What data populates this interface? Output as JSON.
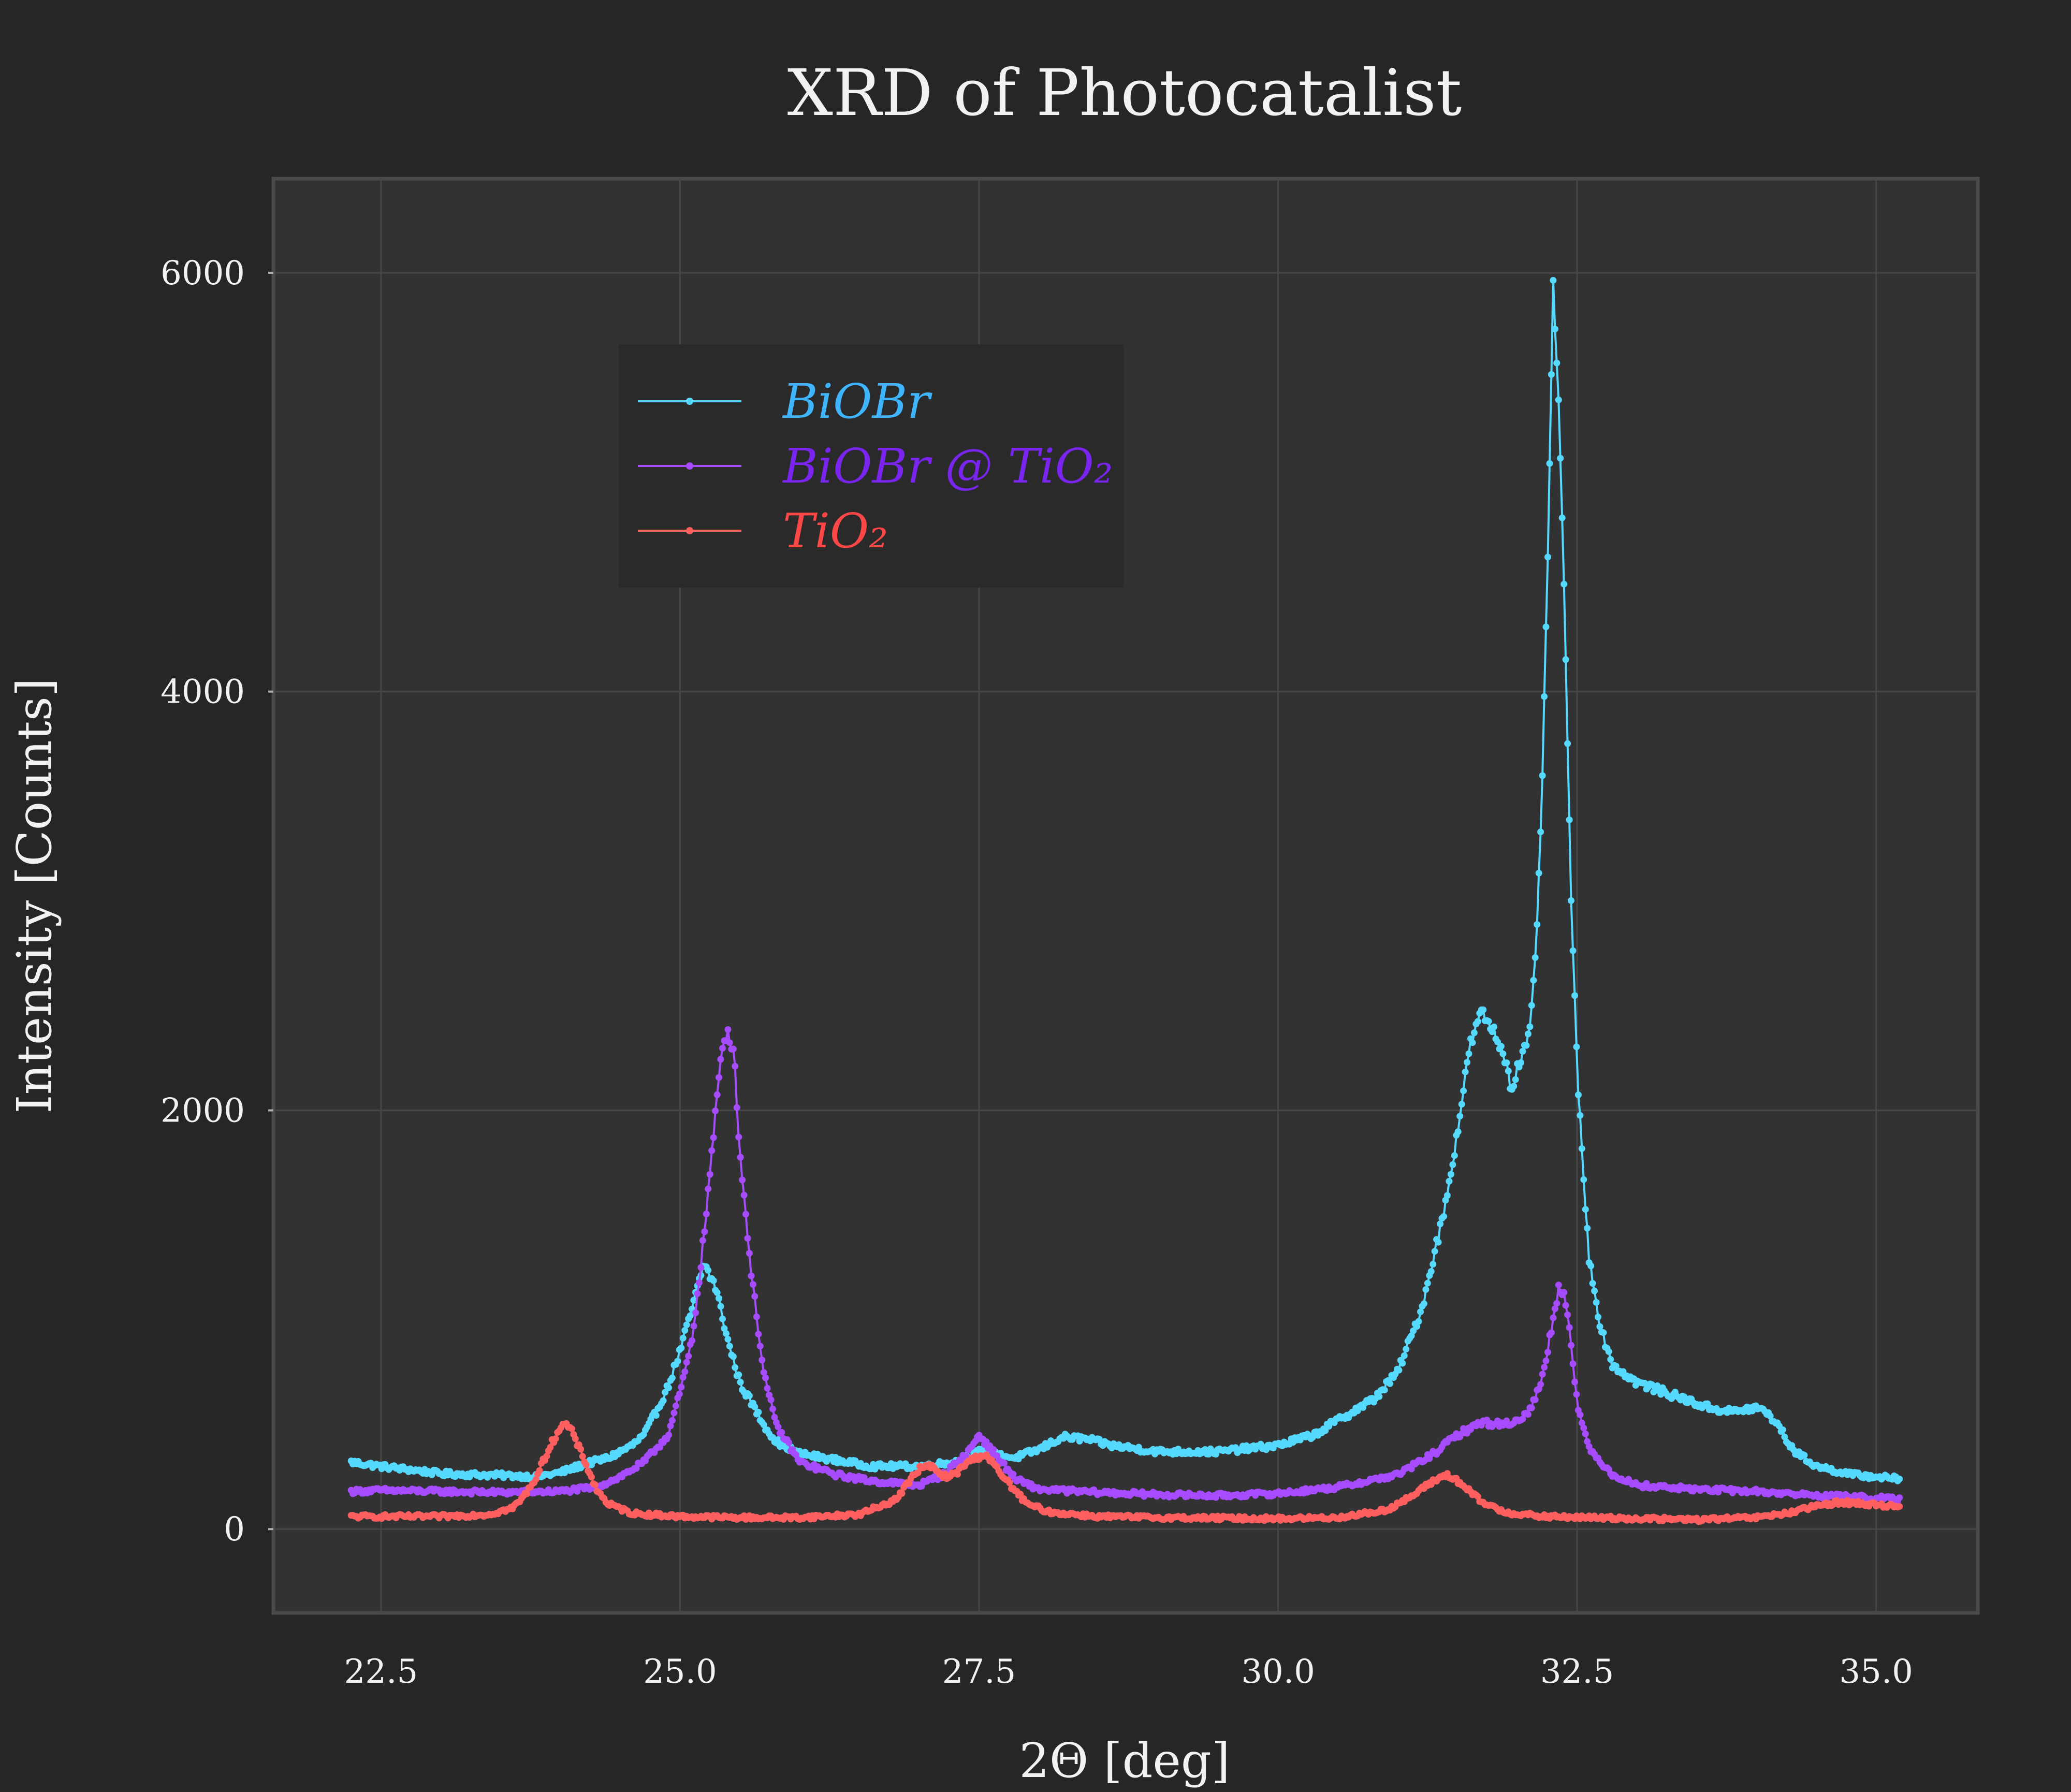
{
  "chart_data": {
    "type": "line",
    "title": "XRD of Photocatalist",
    "xlabel": "2Θ [deg]",
    "ylabel": "Intensity [Counts]",
    "xlim": [
      21.6,
      35.85
    ],
    "ylim": [
      -400,
      6450
    ],
    "xticks": [
      22.5,
      25.0,
      27.5,
      30.0,
      32.5,
      35.0
    ],
    "xtick_labels": [
      "22.5",
      "25.0",
      "27.5",
      "30.0",
      "32.5",
      "35.0"
    ],
    "yticks": [
      0,
      2000,
      4000,
      6000
    ],
    "ytick_labels": [
      "0",
      "2000",
      "4000",
      "6000"
    ],
    "grid": true,
    "legend": "upper-left",
    "background_color": "#262626",
    "plot_area_color": "#323232",
    "grid_color": "#4a4a4a",
    "series": [
      {
        "name": "BiOBr",
        "color": "#55d9ff",
        "label_color": "#3fb4ff",
        "points": [
          [
            22.25,
            320
          ],
          [
            22.5,
            300
          ],
          [
            22.8,
            280
          ],
          [
            23.0,
            265
          ],
          [
            23.3,
            260
          ],
          [
            23.6,
            255
          ],
          [
            23.8,
            250
          ],
          [
            24.0,
            270
          ],
          [
            24.2,
            310
          ],
          [
            24.4,
            340
          ],
          [
            24.6,
            400
          ],
          [
            24.7,
            450
          ],
          [
            24.8,
            560
          ],
          [
            24.9,
            680
          ],
          [
            25.0,
            850
          ],
          [
            25.1,
            1050
          ],
          [
            25.2,
            1270
          ],
          [
            25.3,
            1150
          ],
          [
            25.4,
            900
          ],
          [
            25.5,
            700
          ],
          [
            25.6,
            600
          ],
          [
            25.7,
            500
          ],
          [
            25.8,
            420
          ],
          [
            26.0,
            360
          ],
          [
            26.3,
            330
          ],
          [
            26.6,
            300
          ],
          [
            27.0,
            300
          ],
          [
            27.3,
            320
          ],
          [
            27.5,
            370
          ],
          [
            27.8,
            340
          ],
          [
            28.0,
            380
          ],
          [
            28.2,
            440
          ],
          [
            28.4,
            430
          ],
          [
            28.6,
            400
          ],
          [
            29.0,
            370
          ],
          [
            29.5,
            370
          ],
          [
            30.0,
            400
          ],
          [
            30.3,
            450
          ],
          [
            30.5,
            520
          ],
          [
            30.8,
            620
          ],
          [
            31.0,
            750
          ],
          [
            31.1,
            900
          ],
          [
            31.2,
            1050
          ],
          [
            31.3,
            1300
          ],
          [
            31.4,
            1550
          ],
          [
            31.5,
            1900
          ],
          [
            31.6,
            2300
          ],
          [
            31.7,
            2470
          ],
          [
            31.8,
            2380
          ],
          [
            31.9,
            2250
          ],
          [
            31.95,
            2100
          ],
          [
            32.0,
            2200
          ],
          [
            32.1,
            2350
          ],
          [
            32.15,
            2700
          ],
          [
            32.2,
            3400
          ],
          [
            32.25,
            4500
          ],
          [
            32.3,
            5950
          ],
          [
            32.35,
            5300
          ],
          [
            32.4,
            4300
          ],
          [
            32.45,
            3000
          ],
          [
            32.5,
            2200
          ],
          [
            32.55,
            1700
          ],
          [
            32.6,
            1300
          ],
          [
            32.7,
            950
          ],
          [
            32.8,
            780
          ],
          [
            33.0,
            700
          ],
          [
            33.3,
            640
          ],
          [
            33.6,
            580
          ],
          [
            33.8,
            560
          ],
          [
            34.0,
            580
          ],
          [
            34.1,
            550
          ],
          [
            34.2,
            480
          ],
          [
            34.3,
            380
          ],
          [
            34.5,
            300
          ],
          [
            34.8,
            260
          ],
          [
            35.0,
            250
          ],
          [
            35.2,
            240
          ]
        ]
      },
      {
        "name": "BiOBr @ TiO₂",
        "color": "#a74bff",
        "label_color": "#7a24f0",
        "points": [
          [
            22.25,
            180
          ],
          [
            22.5,
            185
          ],
          [
            23.0,
            180
          ],
          [
            23.5,
            175
          ],
          [
            24.0,
            180
          ],
          [
            24.3,
            200
          ],
          [
            24.5,
            250
          ],
          [
            24.7,
            320
          ],
          [
            24.9,
            450
          ],
          [
            25.0,
            650
          ],
          [
            25.1,
            900
          ],
          [
            25.2,
            1400
          ],
          [
            25.3,
            2000
          ],
          [
            25.35,
            2300
          ],
          [
            25.4,
            2380
          ],
          [
            25.45,
            2280
          ],
          [
            25.5,
            1800
          ],
          [
            25.6,
            1200
          ],
          [
            25.7,
            750
          ],
          [
            25.8,
            500
          ],
          [
            26.0,
            320
          ],
          [
            26.3,
            260
          ],
          [
            26.6,
            230
          ],
          [
            27.0,
            210
          ],
          [
            27.2,
            260
          ],
          [
            27.4,
            360
          ],
          [
            27.5,
            450
          ],
          [
            27.6,
            380
          ],
          [
            27.8,
            240
          ],
          [
            28.0,
            190
          ],
          [
            28.5,
            175
          ],
          [
            29.0,
            165
          ],
          [
            29.5,
            160
          ],
          [
            30.0,
            170
          ],
          [
            30.5,
            200
          ],
          [
            31.0,
            260
          ],
          [
            31.3,
            360
          ],
          [
            31.5,
            450
          ],
          [
            31.7,
            510
          ],
          [
            31.9,
            500
          ],
          [
            32.0,
            520
          ],
          [
            32.1,
            560
          ],
          [
            32.2,
            700
          ],
          [
            32.3,
            1000
          ],
          [
            32.35,
            1170
          ],
          [
            32.4,
            1100
          ],
          [
            32.45,
            900
          ],
          [
            32.5,
            600
          ],
          [
            32.6,
            380
          ],
          [
            32.8,
            260
          ],
          [
            33.0,
            210
          ],
          [
            33.5,
            190
          ],
          [
            34.0,
            180
          ],
          [
            34.5,
            160
          ],
          [
            35.0,
            150
          ],
          [
            35.2,
            140
          ]
        ]
      },
      {
        "name": "TiO₂",
        "color": "#ff5f5f",
        "label_color": "#ff4747",
        "points": [
          [
            22.25,
            60
          ],
          [
            22.5,
            60
          ],
          [
            23.0,
            60
          ],
          [
            23.4,
            70
          ],
          [
            23.6,
            100
          ],
          [
            23.7,
            160
          ],
          [
            23.8,
            250
          ],
          [
            23.9,
            380
          ],
          [
            24.0,
            490
          ],
          [
            24.05,
            500
          ],
          [
            24.1,
            460
          ],
          [
            24.2,
            330
          ],
          [
            24.3,
            190
          ],
          [
            24.4,
            120
          ],
          [
            24.6,
            75
          ],
          [
            25.0,
            60
          ],
          [
            25.5,
            55
          ],
          [
            26.0,
            55
          ],
          [
            26.5,
            70
          ],
          [
            26.8,
            140
          ],
          [
            27.0,
            290
          ],
          [
            27.1,
            300
          ],
          [
            27.2,
            250
          ],
          [
            27.3,
            260
          ],
          [
            27.4,
            320
          ],
          [
            27.55,
            360
          ],
          [
            27.7,
            250
          ],
          [
            27.9,
            120
          ],
          [
            28.1,
            80
          ],
          [
            28.5,
            60
          ],
          [
            29.0,
            55
          ],
          [
            30.0,
            50
          ],
          [
            30.5,
            55
          ],
          [
            30.9,
            90
          ],
          [
            31.1,
            150
          ],
          [
            31.3,
            230
          ],
          [
            31.4,
            260
          ],
          [
            31.5,
            230
          ],
          [
            31.7,
            130
          ],
          [
            31.9,
            80
          ],
          [
            32.2,
            60
          ],
          [
            33.0,
            50
          ],
          [
            33.5,
            45
          ],
          [
            34.0,
            55
          ],
          [
            34.3,
            80
          ],
          [
            34.5,
            110
          ],
          [
            34.7,
            130
          ],
          [
            35.0,
            115
          ],
          [
            35.2,
            110
          ]
        ]
      }
    ]
  }
}
